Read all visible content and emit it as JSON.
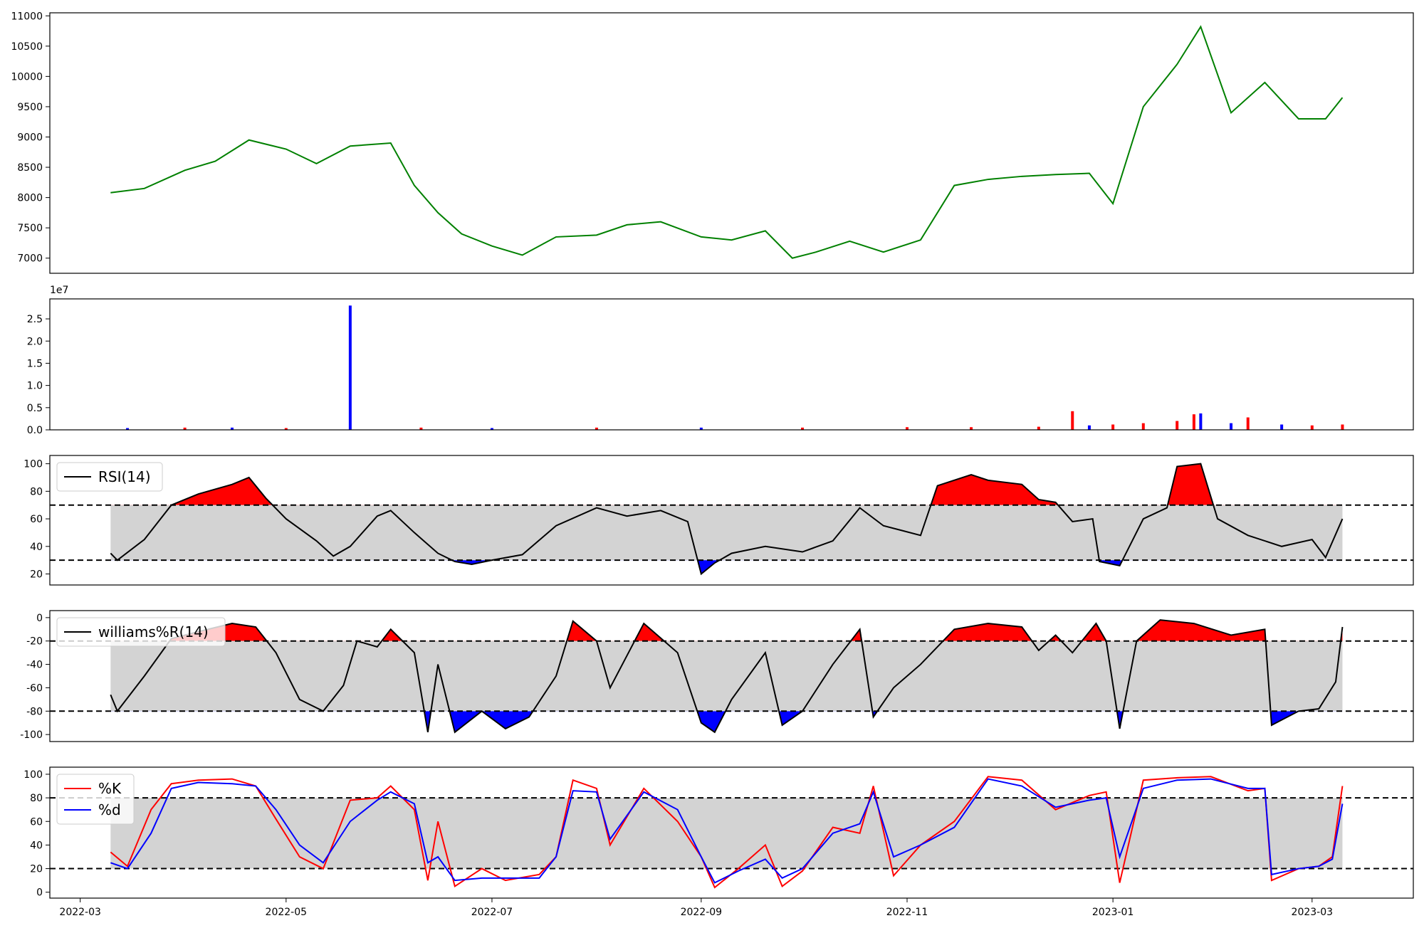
{
  "x_axis": {
    "tick_labels": [
      "2022-03",
      "2022-05",
      "2022-07",
      "2022-09",
      "2022-11",
      "2023-01",
      "2023-03"
    ],
    "tick_dates": [
      "2022-03-01",
      "2022-05-01",
      "2022-07-01",
      "2022-09-01",
      "2022-11-01",
      "2023-01-01",
      "2023-03-01"
    ],
    "xlim": [
      "2022-02-20",
      "2023-03-31"
    ],
    "data_range": [
      "2022-03-10",
      "2023-03-10"
    ]
  },
  "chart_data": [
    {
      "type": "line",
      "panel": "price",
      "title": "",
      "ylim": [
        6750,
        11050
      ],
      "yticks": [
        7000,
        7500,
        8000,
        8500,
        9000,
        9500,
        10000,
        10500,
        11000
      ],
      "grid": false,
      "line_color": "#008000",
      "x": [
        "2022-03-10",
        "2022-03-20",
        "2022-04-01",
        "2022-04-10",
        "2022-04-20",
        "2022-05-01",
        "2022-05-10",
        "2022-05-20",
        "2022-06-01",
        "2022-06-08",
        "2022-06-15",
        "2022-06-22",
        "2022-07-01",
        "2022-07-10",
        "2022-07-20",
        "2022-08-01",
        "2022-08-10",
        "2022-08-20",
        "2022-09-01",
        "2022-09-10",
        "2022-09-20",
        "2022-09-28",
        "2022-10-05",
        "2022-10-15",
        "2022-10-25",
        "2022-11-05",
        "2022-11-15",
        "2022-11-25",
        "2022-12-05",
        "2022-12-15",
        "2022-12-25",
        "2023-01-01",
        "2023-01-10",
        "2023-01-20",
        "2023-01-27",
        "2023-02-05",
        "2023-02-15",
        "2023-02-25",
        "2023-03-05",
        "2023-03-10"
      ],
      "values": [
        8080,
        8150,
        8450,
        8600,
        8950,
        8800,
        8560,
        8850,
        8900,
        8200,
        7750,
        7400,
        7200,
        7050,
        7350,
        7380,
        7550,
        7600,
        7350,
        7300,
        7450,
        7000,
        7100,
        7280,
        7100,
        7300,
        8200,
        8300,
        8350,
        8380,
        8400,
        7900,
        9500,
        10200,
        10820,
        9400,
        9900,
        9300,
        9300,
        9650
      ]
    },
    {
      "type": "bar",
      "panel": "volume",
      "title": "",
      "offset_label": "1e7",
      "ylim": [
        0,
        2.95
      ],
      "yticks": [
        0.0,
        0.5,
        1.0,
        1.5,
        2.0,
        2.5
      ],
      "grid": false,
      "up_color": "#ff0000",
      "down_color": "#0000ff",
      "note_units": "values in units of 1e7",
      "x": [
        "2022-03-15",
        "2022-04-01",
        "2022-04-15",
        "2022-05-01",
        "2022-05-20",
        "2022-06-10",
        "2022-07-01",
        "2022-08-01",
        "2022-09-01",
        "2022-10-01",
        "2022-11-01",
        "2022-11-20",
        "2022-12-10",
        "2022-12-20",
        "2022-12-25",
        "2023-01-01",
        "2023-01-10",
        "2023-01-20",
        "2023-01-25",
        "2023-01-27",
        "2023-02-05",
        "2023-02-10",
        "2023-02-20",
        "2023-03-01",
        "2023-03-10"
      ],
      "values": [
        0.04,
        0.05,
        0.05,
        0.04,
        2.8,
        0.05,
        0.04,
        0.05,
        0.05,
        0.05,
        0.06,
        0.06,
        0.07,
        0.42,
        0.1,
        0.12,
        0.15,
        0.2,
        0.35,
        0.37,
        0.15,
        0.28,
        0.12,
        0.1,
        0.12
      ],
      "colors": [
        "b",
        "r",
        "b",
        "r",
        "b",
        "r",
        "b",
        "r",
        "b",
        "r",
        "r",
        "r",
        "r",
        "r",
        "b",
        "r",
        "r",
        "r",
        "r",
        "b",
        "b",
        "r",
        "b",
        "r",
        "r"
      ]
    },
    {
      "type": "line",
      "panel": "rsi",
      "title": "",
      "legend": [
        "RSI(14)"
      ],
      "legend_position": "top-left",
      "ylim": [
        12,
        106
      ],
      "yticks": [
        20,
        40,
        60,
        80,
        100
      ],
      "hlines": [
        70,
        30
      ],
      "band": [
        30,
        70
      ],
      "overbought_color": "#ff0000",
      "oversold_color": "#0000ff",
      "band_color": "#d3d3d3",
      "grid": false,
      "x": [
        "2022-03-10",
        "2022-03-12",
        "2022-03-20",
        "2022-03-28",
        "2022-04-05",
        "2022-04-15",
        "2022-04-20",
        "2022-04-25",
        "2022-05-01",
        "2022-05-10",
        "2022-05-15",
        "2022-05-20",
        "2022-05-28",
        "2022-06-01",
        "2022-06-08",
        "2022-06-15",
        "2022-06-20",
        "2022-06-25",
        "2022-07-01",
        "2022-07-10",
        "2022-07-20",
        "2022-08-01",
        "2022-08-10",
        "2022-08-20",
        "2022-08-28",
        "2022-09-01",
        "2022-09-05",
        "2022-09-10",
        "2022-09-20",
        "2022-10-01",
        "2022-10-10",
        "2022-10-18",
        "2022-10-25",
        "2022-11-05",
        "2022-11-10",
        "2022-11-20",
        "2022-11-25",
        "2022-12-05",
        "2022-12-10",
        "2022-12-15",
        "2022-12-20",
        "2022-12-26",
        "2022-12-28",
        "2023-01-03",
        "2023-01-10",
        "2023-01-17",
        "2023-01-20",
        "2023-01-27",
        "2023-02-01",
        "2023-02-10",
        "2023-02-20",
        "2023-03-01",
        "2023-03-05",
        "2023-03-10"
      ],
      "values": [
        35,
        30,
        45,
        70,
        78,
        85,
        90,
        75,
        60,
        44,
        33,
        40,
        62,
        66,
        50,
        35,
        29,
        27,
        30,
        34,
        55,
        68,
        62,
        66,
        58,
        20,
        28,
        35,
        40,
        36,
        44,
        68,
        55,
        48,
        84,
        92,
        88,
        85,
        74,
        72,
        58,
        60,
        29,
        26,
        60,
        68,
        98,
        100,
        60,
        48,
        40,
        45,
        32,
        60
      ]
    },
    {
      "type": "line",
      "panel": "williams",
      "title": "",
      "legend": [
        "williams%R(14)"
      ],
      "legend_position": "top-left",
      "ylim": [
        -106,
        6
      ],
      "yticks": [
        0,
        -20,
        -40,
        -60,
        -80,
        -100
      ],
      "hlines": [
        -20,
        -80
      ],
      "band": [
        -80,
        -20
      ],
      "overbought_color": "#ff0000",
      "oversold_color": "#0000ff",
      "band_color": "#d3d3d3",
      "grid": false,
      "x": [
        "2022-03-10",
        "2022-03-12",
        "2022-03-20",
        "2022-03-28",
        "2022-04-05",
        "2022-04-15",
        "2022-04-22",
        "2022-04-28",
        "2022-05-05",
        "2022-05-12",
        "2022-05-18",
        "2022-05-22",
        "2022-05-28",
        "2022-06-01",
        "2022-06-08",
        "2022-06-12",
        "2022-06-15",
        "2022-06-20",
        "2022-06-28",
        "2022-07-05",
        "2022-07-12",
        "2022-07-20",
        "2022-07-25",
        "2022-08-01",
        "2022-08-05",
        "2022-08-15",
        "2022-08-25",
        "2022-09-01",
        "2022-09-05",
        "2022-09-10",
        "2022-09-20",
        "2022-09-25",
        "2022-10-01",
        "2022-10-10",
        "2022-10-18",
        "2022-10-22",
        "2022-10-28",
        "2022-11-05",
        "2022-11-15",
        "2022-11-25",
        "2022-12-05",
        "2022-12-10",
        "2022-12-15",
        "2022-12-20",
        "2022-12-27",
        "2022-12-30",
        "2023-01-03",
        "2023-01-08",
        "2023-01-15",
        "2023-01-25",
        "2023-02-05",
        "2023-02-15",
        "2023-02-17",
        "2023-02-25",
        "2023-03-03",
        "2023-03-08",
        "2023-03-10"
      ],
      "values": [
        -66,
        -80,
        -50,
        -18,
        -12,
        -5,
        -8,
        -30,
        -70,
        -80,
        -58,
        -20,
        -25,
        -10,
        -30,
        -98,
        -40,
        -98,
        -80,
        -95,
        -85,
        -50,
        -3,
        -20,
        -60,
        -5,
        -30,
        -90,
        -98,
        -70,
        -30,
        -92,
        -80,
        -40,
        -10,
        -85,
        -60,
        -40,
        -10,
        -5,
        -8,
        -28,
        -15,
        -30,
        -5,
        -20,
        -95,
        -20,
        -2,
        -5,
        -15,
        -10,
        -92,
        -80,
        -78,
        -55,
        -8
      ]
    },
    {
      "type": "line",
      "panel": "stochastic",
      "title": "",
      "legend": [
        "%K",
        "%d"
      ],
      "legend_position": "top-left",
      "ylim": [
        -5,
        106
      ],
      "yticks": [
        0,
        20,
        40,
        60,
        80,
        100
      ],
      "hlines": [
        80,
        20
      ],
      "band": [
        20,
        80
      ],
      "band_color": "#d3d3d3",
      "grid": false,
      "x": [
        "2022-03-10",
        "2022-03-15",
        "2022-03-22",
        "2022-03-28",
        "2022-04-05",
        "2022-04-15",
        "2022-04-22",
        "2022-04-28",
        "2022-05-05",
        "2022-05-12",
        "2022-05-20",
        "2022-05-28",
        "2022-06-01",
        "2022-06-08",
        "2022-06-12",
        "2022-06-15",
        "2022-06-20",
        "2022-06-28",
        "2022-07-05",
        "2022-07-15",
        "2022-07-20",
        "2022-07-25",
        "2022-08-01",
        "2022-08-05",
        "2022-08-15",
        "2022-08-25",
        "2022-09-01",
        "2022-09-05",
        "2022-09-12",
        "2022-09-20",
        "2022-09-25",
        "2022-10-01",
        "2022-10-10",
        "2022-10-18",
        "2022-10-22",
        "2022-10-28",
        "2022-11-05",
        "2022-11-15",
        "2022-11-25",
        "2022-12-05",
        "2022-12-15",
        "2022-12-25",
        "2022-12-30",
        "2023-01-03",
        "2023-01-10",
        "2023-01-20",
        "2023-01-30",
        "2023-02-10",
        "2023-02-15",
        "2023-02-17",
        "2023-02-25",
        "2023-03-03",
        "2023-03-07",
        "2023-03-10"
      ],
      "series": [
        {
          "name": "%K",
          "color": "#ff0000",
          "values": [
            34,
            22,
            70,
            92,
            95,
            96,
            90,
            62,
            30,
            20,
            78,
            80,
            90,
            70,
            10,
            60,
            5,
            20,
            10,
            15,
            30,
            95,
            88,
            40,
            88,
            60,
            30,
            4,
            20,
            40,
            5,
            18,
            55,
            50,
            90,
            14,
            40,
            60,
            98,
            95,
            70,
            82,
            85,
            8,
            95,
            97,
            98,
            86,
            88,
            10,
            20,
            22,
            30,
            90
          ]
        },
        {
          "name": "%d",
          "color": "#0000ff",
          "values": [
            25,
            20,
            50,
            88,
            93,
            92,
            90,
            70,
            40,
            25,
            60,
            78,
            85,
            75,
            25,
            30,
            10,
            12,
            12,
            12,
            30,
            86,
            85,
            45,
            85,
            70,
            30,
            8,
            18,
            28,
            12,
            20,
            50,
            58,
            85,
            30,
            40,
            55,
            96,
            90,
            72,
            78,
            80,
            30,
            88,
            95,
            96,
            88,
            88,
            15,
            20,
            22,
            28,
            75
          ]
        }
      ]
    }
  ]
}
